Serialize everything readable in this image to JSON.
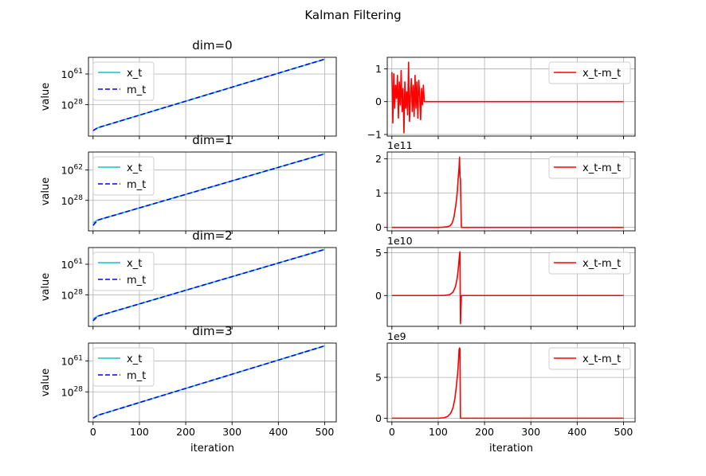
{
  "figure": {
    "suptitle": "Kalman Filtering"
  },
  "chart_data": [
    {
      "type": "line",
      "panel": "log-0",
      "title": "dim=0",
      "ylabel": "value",
      "xlabel": "",
      "yscale": "log",
      "yticks": [
        28,
        61
      ],
      "xlim": [
        -10,
        525
      ],
      "ylog_lim": [
        -6,
        79
      ],
      "grid": true,
      "legend": "upper-left",
      "series": [
        {
          "name": "x_t",
          "color": "#17becf",
          "style": "solid",
          "x": [
            0,
            10,
            500
          ],
          "log10_y": [
            0,
            3,
            77
          ]
        },
        {
          "name": "m_t",
          "color": "#0000ff",
          "style": "dashed",
          "x": [
            0,
            10,
            500
          ],
          "log10_y": [
            0,
            3,
            77
          ]
        }
      ]
    },
    {
      "type": "line",
      "panel": "diff-0",
      "title": "",
      "ylabel": "",
      "xlabel": "",
      "ylim": [
        -1.05,
        1.35
      ],
      "yticks": [
        -1,
        0,
        1
      ],
      "ytick_labels": [
        "−1",
        "0",
        "1"
      ],
      "multiplier": "",
      "xlim": [
        -10,
        525
      ],
      "grid": true,
      "legend": "upper-right",
      "series": [
        {
          "name": "x_t-m_t",
          "color": "#ff0000",
          "x": [
            0,
            2,
            4,
            6,
            8,
            10,
            12,
            14,
            16,
            18,
            20,
            22,
            24,
            26,
            28,
            30,
            32,
            34,
            36,
            38,
            40,
            42,
            44,
            46,
            48,
            50,
            52,
            54,
            56,
            58,
            60,
            62,
            64,
            66,
            68,
            70,
            75,
            500
          ],
          "y": [
            0.9,
            -0.65,
            0.85,
            -0.2,
            0.5,
            0.1,
            0.8,
            -0.5,
            0.6,
            -0.1,
            0.95,
            -0.3,
            0.4,
            -0.95,
            0.6,
            -0.2,
            0.3,
            -0.4,
            1.2,
            -0.6,
            0.2,
            0.7,
            -0.3,
            0.5,
            -0.45,
            0.8,
            -0.2,
            0.6,
            -0.5,
            0.65,
            0.2,
            -0.55,
            0.4,
            -0.1,
            0.5,
            0.0,
            0.0,
            0.0
          ]
        }
      ]
    },
    {
      "type": "line",
      "panel": "log-1",
      "title": "dim=1",
      "ylabel": "value",
      "xlabel": "",
      "yscale": "log",
      "yticks": [
        28,
        62
      ],
      "xlim": [
        -10,
        525
      ],
      "ylog_lim": [
        -6,
        82
      ],
      "grid": true,
      "legend": "upper-left",
      "series": [
        {
          "name": "x_t",
          "color": "#17becf",
          "style": "solid",
          "x": [
            0,
            10,
            500
          ],
          "log10_y": [
            3,
            6,
            80
          ]
        },
        {
          "name": "m_t",
          "color": "#0000ff",
          "style": "dashed",
          "x": [
            0,
            10,
            500
          ],
          "log10_y": [
            0,
            6,
            80
          ]
        }
      ]
    },
    {
      "type": "line",
      "panel": "diff-1",
      "title": "",
      "ylabel": "",
      "xlabel": "",
      "ylim": [
        -0.1,
        2.2
      ],
      "yticks": [
        0,
        1,
        2
      ],
      "ytick_labels": [
        "0",
        "1",
        "2"
      ],
      "multiplier": "1e11",
      "xlim": [
        -10,
        525
      ],
      "grid": true,
      "legend": "upper-right",
      "series": [
        {
          "name": "x_t-m_t",
          "color": "#ff0000",
          "x": [
            0,
            100,
            110,
            120,
            126,
            130,
            134,
            138,
            141,
            143,
            145,
            146,
            147,
            148,
            150,
            500
          ],
          "y": [
            0,
            0,
            0.005,
            0.02,
            0.05,
            0.12,
            0.3,
            0.65,
            1.0,
            1.4,
            1.75,
            2.05,
            1.5,
            1.4,
            0,
            0
          ]
        }
      ]
    },
    {
      "type": "line",
      "panel": "log-2",
      "title": "dim=2",
      "ylabel": "value",
      "xlabel": "",
      "yscale": "log",
      "yticks": [
        28,
        61
      ],
      "xlim": [
        -10,
        525
      ],
      "ylog_lim": [
        -6,
        79
      ],
      "grid": true,
      "legend": "upper-left",
      "series": [
        {
          "name": "x_t",
          "color": "#17becf",
          "style": "solid",
          "x": [
            0,
            10,
            500
          ],
          "log10_y": [
            2,
            5,
            77
          ]
        },
        {
          "name": "m_t",
          "color": "#0000ff",
          "style": "dashed",
          "x": [
            0,
            10,
            500
          ],
          "log10_y": [
            0,
            5,
            77
          ]
        }
      ]
    },
    {
      "type": "line",
      "panel": "diff-2",
      "title": "",
      "ylabel": "",
      "xlabel": "",
      "ylim": [
        -3.6,
        5.6
      ],
      "yticks": [
        0,
        5
      ],
      "ytick_labels": [
        "0",
        "5"
      ],
      "multiplier": "1e10",
      "xlim": [
        -10,
        525
      ],
      "grid": true,
      "legend": "upper-right",
      "series": [
        {
          "name": "x_t-m_t",
          "color": "#ff0000",
          "x": [
            0,
            100,
            115,
            125,
            132,
            137,
            141,
            144,
            146,
            147,
            148,
            150,
            152,
            500
          ],
          "y": [
            0,
            0,
            0.02,
            0.1,
            0.4,
            1.0,
            2.0,
            3.5,
            4.8,
            5.1,
            -3.3,
            0,
            0,
            0
          ]
        }
      ]
    },
    {
      "type": "line",
      "panel": "log-3",
      "title": "dim=3",
      "ylabel": "value",
      "xlabel": "iteration",
      "yscale": "log",
      "yticks": [
        28,
        61
      ],
      "xlim": [
        -10,
        525
      ],
      "ylog_lim": [
        -4,
        80
      ],
      "xticks": [
        0,
        100,
        200,
        300,
        400,
        500
      ],
      "grid": true,
      "legend": "upper-left",
      "series": [
        {
          "name": "x_t",
          "color": "#17becf",
          "style": "solid",
          "x": [
            0,
            10,
            500
          ],
          "log10_y": [
            0,
            3,
            77
          ]
        },
        {
          "name": "m_t",
          "color": "#0000ff",
          "style": "dashed",
          "x": [
            0,
            10,
            500
          ],
          "log10_y": [
            0,
            3,
            77
          ]
        }
      ]
    },
    {
      "type": "line",
      "panel": "diff-3",
      "title": "",
      "ylabel": "",
      "xlabel": "iteration",
      "ylim": [
        -0.45,
        9.2
      ],
      "yticks": [
        0,
        5
      ],
      "ytick_labels": [
        "0",
        "5"
      ],
      "multiplier": "1e9",
      "xlim": [
        -10,
        525
      ],
      "xticks": [
        0,
        100,
        200,
        300,
        400,
        500
      ],
      "grid": true,
      "legend": "upper-right",
      "series": [
        {
          "name": "x_t-m_t",
          "color": "#ff0000",
          "x": [
            0,
            100,
            112,
            120,
            127,
            132,
            136,
            139,
            142,
            144,
            145,
            146,
            147,
            148,
            150,
            500
          ],
          "y": [
            0,
            0,
            0.05,
            0.2,
            0.6,
            1.3,
            2.4,
            3.8,
            5.5,
            7.2,
            8.4,
            8.6,
            8.5,
            0,
            0,
            0
          ]
        }
      ]
    }
  ]
}
